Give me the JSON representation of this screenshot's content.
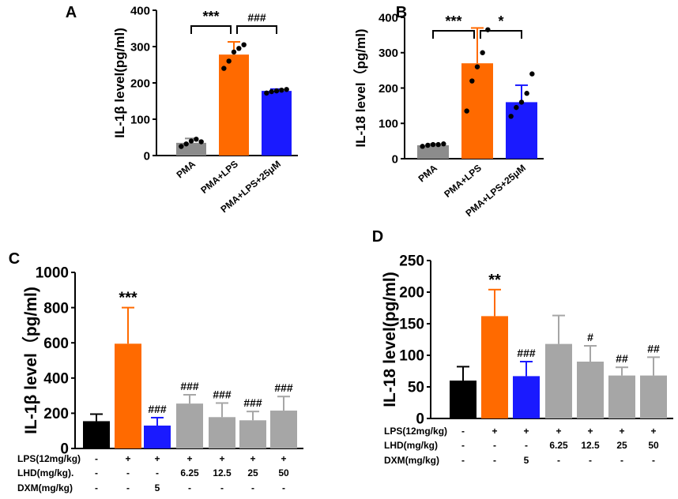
{
  "chart_data": [
    {
      "panel": "A",
      "type": "bar",
      "ylabel": "IL-1β level(pg/ml)",
      "ylim": [
        0,
        400
      ],
      "yticks": [
        0,
        100,
        200,
        300,
        400
      ],
      "categories": [
        "PMA",
        "PMA+LPS",
        "PMA+LPS+25μM"
      ],
      "values": [
        35,
        278,
        178
      ],
      "errors": [
        12,
        35,
        5
      ],
      "colors": [
        "#8c8c8c",
        "#ff6a00",
        "#1a1aff"
      ],
      "points": [
        [
          25,
          32,
          40,
          45,
          38
        ],
        [
          240,
          260,
          285,
          295,
          305
        ],
        [
          172,
          176,
          178,
          180,
          182
        ]
      ],
      "brackets": [
        {
          "from": 0,
          "to": 1,
          "label": "***"
        },
        {
          "from": 1,
          "to": 2,
          "label": "###"
        }
      ]
    },
    {
      "panel": "B",
      "type": "bar",
      "ylabel": "IL-18 level（pg/ml)",
      "ylim": [
        0,
        400
      ],
      "yticks": [
        0,
        100,
        200,
        300,
        400
      ],
      "categories": [
        "PMA",
        "PMA+LPS",
        "PMA+LPS+25μM"
      ],
      "values": [
        38,
        270,
        160
      ],
      "errors": [
        4,
        100,
        48
      ],
      "colors": [
        "#8c8c8c",
        "#ff6a00",
        "#1a1aff"
      ],
      "points": [
        [
          35,
          38,
          40,
          40,
          42
        ],
        [
          135,
          220,
          260,
          300,
          365
        ],
        [
          120,
          145,
          160,
          185,
          240
        ]
      ],
      "brackets": [
        {
          "from": 0,
          "to": 1,
          "label": "***"
        },
        {
          "from": 1,
          "to": 2,
          "label": "*"
        }
      ]
    },
    {
      "panel": "C",
      "type": "bar",
      "ylabel": "IL-1β level（pg/ml)",
      "ylim": [
        0,
        1000
      ],
      "yticks": [
        0,
        200,
        400,
        600,
        800,
        1000
      ],
      "values": [
        155,
        595,
        130,
        255,
        178,
        160,
        215
      ],
      "errors": [
        40,
        205,
        45,
        50,
        80,
        50,
        80
      ],
      "colors": [
        "#000000",
        "#ff6a00",
        "#1a1aff",
        "#a6a6a6",
        "#a6a6a6",
        "#a6a6a6",
        "#a6a6a6"
      ],
      "annotations": [
        "",
        "***",
        "###",
        "###",
        "###",
        "###",
        "###"
      ],
      "rows": [
        {
          "label": "LPS(12mg/kg)",
          "values": [
            "-",
            "+",
            "+",
            "+",
            "+",
            "+",
            "+"
          ]
        },
        {
          "label": "LHD(mg/kg).",
          "values": [
            "-",
            "-",
            "-",
            "6.25",
            "12.5",
            "25",
            "50"
          ]
        },
        {
          "label": "DXM(mg/kg)",
          "values": [
            "-",
            "-",
            "5",
            "-",
            "-",
            "-",
            "-"
          ]
        }
      ]
    },
    {
      "panel": "D",
      "type": "bar",
      "ylabel": "IL-18 level(pg/ml)",
      "ylim": [
        0,
        250
      ],
      "yticks": [
        0,
        50,
        100,
        150,
        200,
        250
      ],
      "values": [
        60,
        162,
        67,
        118,
        90,
        68,
        68
      ],
      "errors": [
        22,
        42,
        23,
        45,
        25,
        13,
        29
      ],
      "colors": [
        "#000000",
        "#ff6a00",
        "#1a1aff",
        "#a6a6a6",
        "#a6a6a6",
        "#a6a6a6",
        "#a6a6a6"
      ],
      "annotations": [
        "",
        "**",
        "###",
        "",
        "#",
        "##",
        "##"
      ],
      "rows": [
        {
          "label": "LPS(12mg/kg)",
          "values": [
            "-",
            "+",
            "+",
            "+",
            "+",
            "+",
            "+"
          ]
        },
        {
          "label": "LHD(mg/kg)",
          "values": [
            "-",
            "-",
            "-",
            "6.25",
            "12.5",
            "25",
            "50"
          ]
        },
        {
          "label": "DXM(mg/kg)",
          "values": [
            "-",
            "-",
            "5",
            "-",
            "-",
            "-",
            "-"
          ]
        }
      ]
    }
  ]
}
